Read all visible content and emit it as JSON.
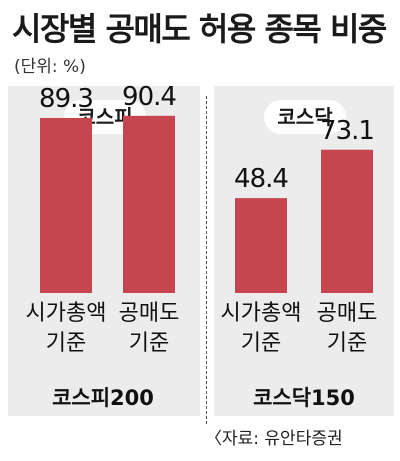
{
  "title": "시장별 공매도 허용 종목 비중",
  "unit": "(단위: %)",
  "source": "〈자료: 유안타증권",
  "chart_data": {
    "type": "bar",
    "ylim": [
      0,
      100
    ],
    "grid": false,
    "legend": "none",
    "colors": {
      "bar": "#c5464f",
      "panel": "#ececec"
    },
    "groups": [
      {
        "pill": "코스피",
        "label": "코스피200",
        "categories": [
          "시가총액\n기준",
          "공매도\n기준"
        ],
        "values": [
          89.3,
          90.4
        ],
        "value_labels": [
          "89.3",
          "90.4"
        ]
      },
      {
        "pill": "코스닥",
        "label": "코스닥150",
        "categories": [
          "시가총액\n기준",
          "공매도\n기준"
        ],
        "values": [
          48.4,
          73.1
        ],
        "value_labels": [
          "48.4",
          "73.1"
        ]
      }
    ]
  }
}
